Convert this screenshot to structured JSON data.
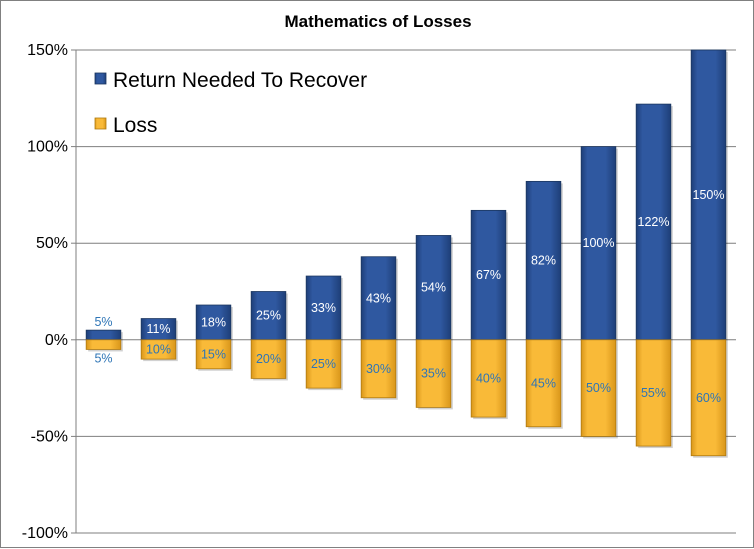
{
  "chart_data": {
    "type": "bar",
    "title": "Mathematics of Losses",
    "xlabel": "",
    "ylabel": "",
    "ylim": [
      -100,
      150
    ],
    "yticks": [
      150,
      100,
      50,
      0,
      -50,
      -100
    ],
    "ytick_labels": [
      "150%",
      "100%",
      "50%",
      "0%",
      "-50%",
      "-100%"
    ],
    "grid": true,
    "legend_placement": "top-left",
    "series": [
      {
        "name": "Return Needed To Recover",
        "color": "#2E5597",
        "values": [
          5,
          11,
          18,
          25,
          33,
          43,
          54,
          67,
          82,
          100,
          122,
          150
        ],
        "labels": [
          "5%",
          "11%",
          "18%",
          "25%",
          "33%",
          "43%",
          "54%",
          "67%",
          "82%",
          "100%",
          "122%",
          "150%"
        ]
      },
      {
        "name": "Loss",
        "color": "#F7B631",
        "values": [
          -5,
          -10,
          -15,
          -20,
          -25,
          -30,
          -35,
          -40,
          -45,
          -50,
          -55,
          -60
        ],
        "labels": [
          "5%",
          "10%",
          "15%",
          "20%",
          "25%",
          "30%",
          "35%",
          "40%",
          "45%",
          "50%",
          "55%",
          "60%"
        ]
      }
    ]
  }
}
